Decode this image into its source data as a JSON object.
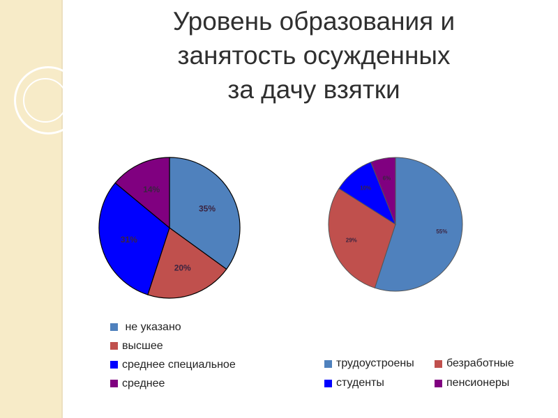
{
  "slide": {
    "title_lines": [
      "Уровень образования и",
      "занятость осужденных",
      "за дачу взятки"
    ]
  },
  "chart_data": [
    {
      "type": "pie",
      "title": "",
      "slices": [
        {
          "label": "не указано",
          "value": 35,
          "text": "35%",
          "color": "#4f81bd"
        },
        {
          "label": "высшее",
          "value": 20,
          "text": "20%",
          "color": "#c0504d"
        },
        {
          "label": "среднее специальное",
          "value": 31,
          "text": "31%",
          "color": "#0000ff"
        },
        {
          "label": "среднее",
          "value": 14,
          "text": "14%",
          "color": "#800080"
        }
      ],
      "legend_position": "bottom"
    },
    {
      "type": "pie",
      "title": "",
      "slices": [
        {
          "label": "трудоустроены",
          "value": 55,
          "text": "55%",
          "color": "#4f81bd"
        },
        {
          "label": "безработные",
          "value": 29,
          "text": "29%",
          "color": "#c0504d"
        },
        {
          "label": "студенты",
          "value": 10,
          "text": "10%",
          "color": "#0000ff"
        },
        {
          "label": "пенсионеры",
          "value": 6,
          "text": "6%",
          "color": "#800080"
        }
      ],
      "legend_position": "bottom"
    }
  ]
}
